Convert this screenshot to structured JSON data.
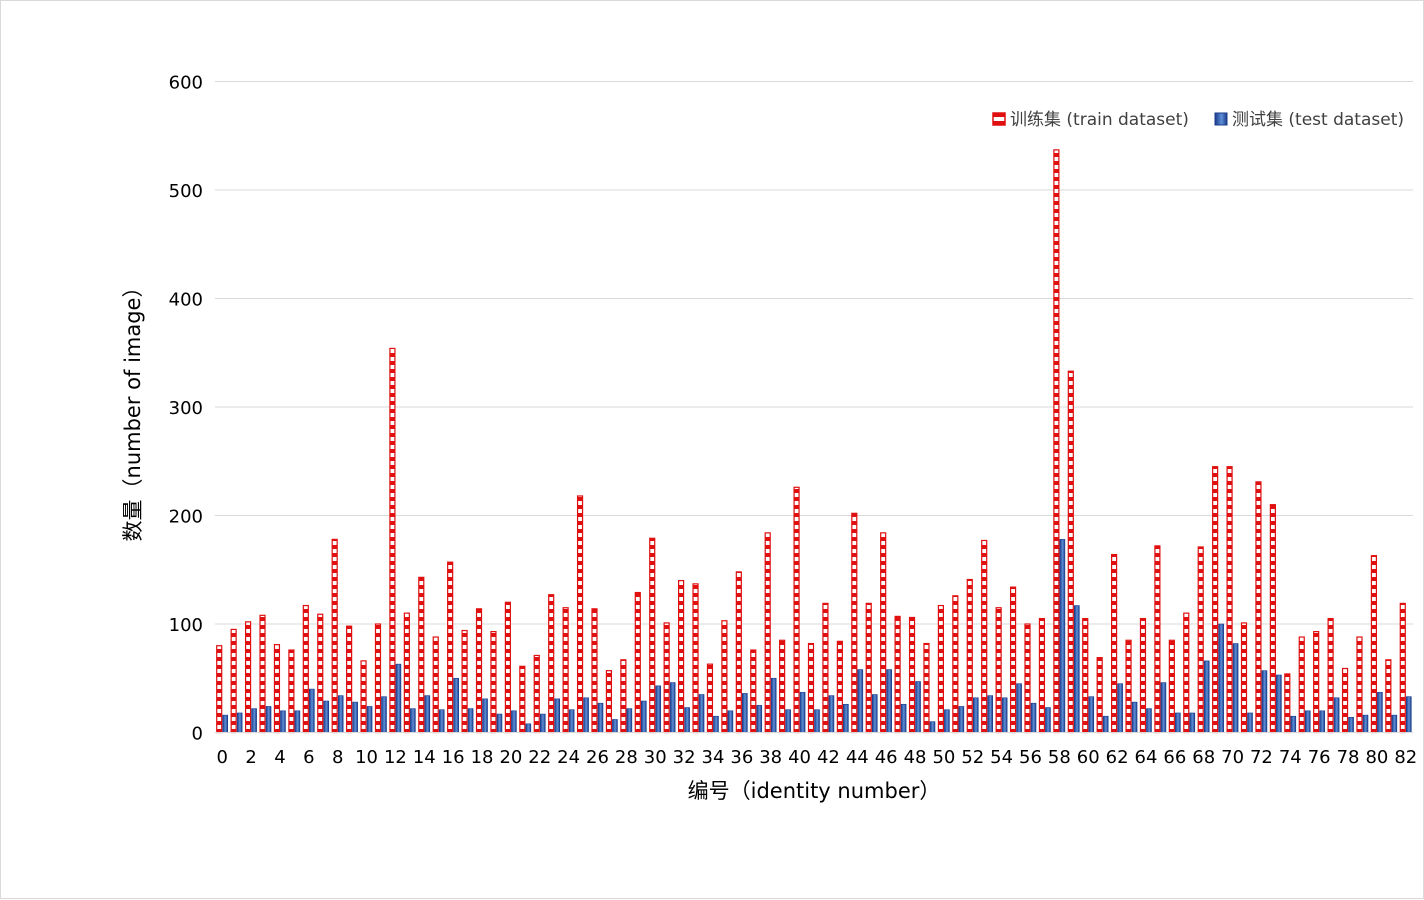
{
  "chart_data": {
    "type": "bar",
    "xlabel": "编号（identity number）",
    "ylabel": "数量（number of image）",
    "ylim": [
      0,
      600
    ],
    "yticks": [
      0,
      100,
      200,
      300,
      400,
      500,
      600
    ],
    "grid": "horizontal",
    "legend": "top-right",
    "categories": [
      0,
      1,
      2,
      3,
      4,
      5,
      6,
      7,
      8,
      9,
      10,
      11,
      12,
      13,
      14,
      15,
      16,
      17,
      18,
      19,
      20,
      21,
      22,
      23,
      24,
      25,
      26,
      27,
      28,
      29,
      30,
      31,
      32,
      33,
      34,
      35,
      36,
      37,
      38,
      39,
      40,
      41,
      42,
      43,
      44,
      45,
      46,
      47,
      48,
      49,
      50,
      51,
      52,
      53,
      54,
      55,
      56,
      57,
      58,
      59,
      60,
      61,
      62,
      63,
      64,
      65,
      66,
      67,
      68,
      69,
      70,
      71,
      72,
      73,
      74,
      75,
      76,
      77,
      78,
      79,
      80,
      81,
      82
    ],
    "xticks": [
      "0",
      "2",
      "4",
      "6",
      "8",
      "10",
      "12",
      "14",
      "16",
      "18",
      "20",
      "22",
      "24",
      "26",
      "28",
      "30",
      "32",
      "34",
      "36",
      "38",
      "40",
      "42",
      "44",
      "46",
      "48",
      "50",
      "52",
      "54",
      "56",
      "58",
      "60",
      "62",
      "64",
      "66",
      "68",
      "70",
      "72",
      "74",
      "76",
      "78",
      "80",
      "82"
    ],
    "series": [
      {
        "name": "训练集 (train dataset)",
        "color": "#e01010",
        "pattern": "red-dashed-stripe",
        "values": [
          80,
          95,
          102,
          108,
          81,
          76,
          117,
          109,
          178,
          98,
          66,
          100,
          354,
          110,
          143,
          88,
          157,
          94,
          114,
          93,
          120,
          61,
          71,
          127,
          115,
          218,
          114,
          57,
          67,
          129,
          179,
          101,
          140,
          137,
          63,
          103,
          148,
          76,
          184,
          85,
          226,
          82,
          119,
          84,
          202,
          119,
          184,
          107,
          106,
          82,
          117,
          126,
          141,
          177,
          115,
          134,
          100,
          105,
          537,
          333,
          105,
          69,
          164,
          85,
          105,
          172,
          85,
          110,
          171,
          245,
          245,
          101,
          231,
          210,
          54,
          88,
          93,
          105,
          59,
          88,
          163,
          67,
          119
        ]
      },
      {
        "name": "测试集 (test dataset)",
        "color": "#1f3f8f",
        "pattern": "blue-gradient",
        "values": [
          16,
          18,
          22,
          24,
          20,
          20,
          40,
          29,
          34,
          28,
          24,
          33,
          63,
          22,
          34,
          21,
          50,
          22,
          31,
          17,
          20,
          8,
          17,
          31,
          21,
          32,
          27,
          12,
          22,
          29,
          43,
          46,
          23,
          35,
          15,
          20,
          36,
          25,
          50,
          21,
          37,
          21,
          34,
          26,
          58,
          35,
          58,
          26,
          47,
          10,
          21,
          24,
          32,
          34,
          32,
          45,
          27,
          23,
          178,
          117,
          33,
          15,
          45,
          28,
          22,
          46,
          18,
          18,
          66,
          100,
          82,
          18,
          57,
          53,
          15,
          20,
          20,
          32,
          14,
          16,
          37,
          16,
          33
        ]
      }
    ]
  },
  "legend": {
    "train_label": "训练集 (train dataset)",
    "test_label": "测试集 (test dataset)"
  }
}
